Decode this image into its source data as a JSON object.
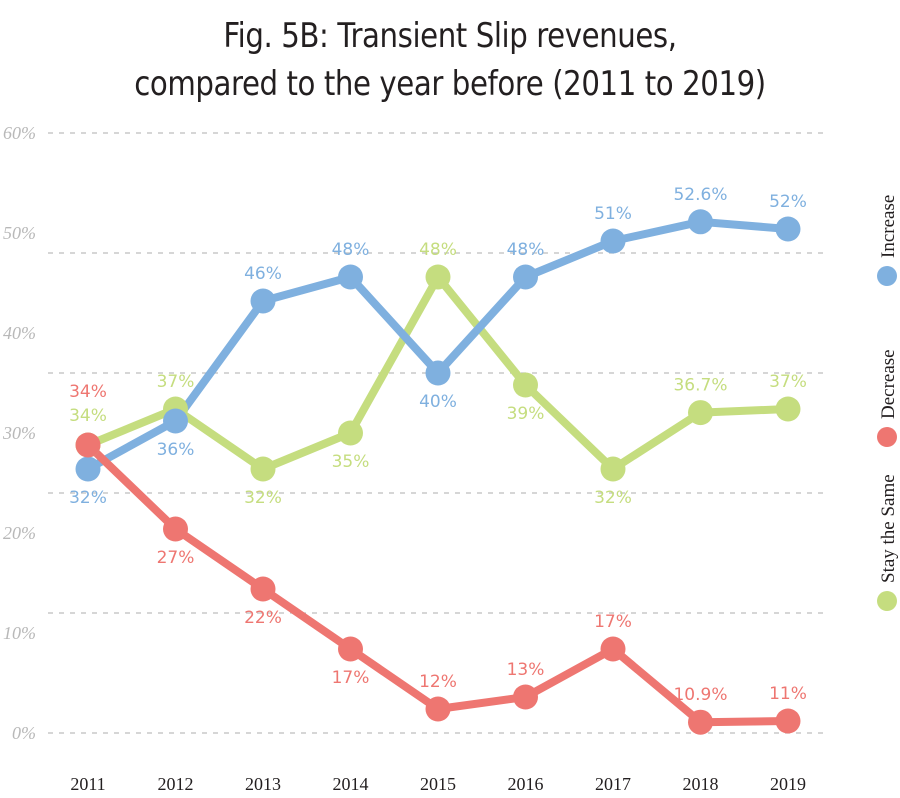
{
  "chart_data": {
    "type": "line",
    "title": "Fig. 5B: Transient Slip revenues, compared to the year before (2011 to 2019)",
    "title_lines": [
      "Fig. 5B: Transient Slip revenues,",
      "compared to the year before (2011 to 2019)"
    ],
    "x": [
      "2011",
      "2012",
      "2013",
      "2014",
      "2015",
      "2016",
      "2017",
      "2018",
      "2019"
    ],
    "xlabel": "",
    "ylabel": "",
    "ylim": [
      10,
      60
    ],
    "y_tick_labels": [
      "60%",
      "50%",
      "40%",
      "30%",
      "20%",
      "10%",
      "0%"
    ],
    "gridlines": [
      60,
      50,
      40,
      30,
      20,
      10
    ],
    "grid": true,
    "legend_placement": "right (vertical)",
    "series": [
      {
        "name": "Increase",
        "color": "#7fb0df",
        "values": [
          32,
          36,
          46,
          48,
          40,
          48,
          51,
          52.6,
          52
        ],
        "labels": [
          "32%",
          "36%",
          "46%",
          "48%",
          "40%",
          "48%",
          "51%",
          "52.6%",
          "52%"
        ],
        "label_pos": [
          "below",
          "below",
          "above",
          "above",
          "below",
          "above",
          "above",
          "above",
          "above"
        ]
      },
      {
        "name": "Decrease",
        "color": "#ee7671",
        "values": [
          34,
          27,
          22,
          17,
          12,
          13,
          17,
          10.9,
          11
        ],
        "labels": [
          "34%",
          "27%",
          "22%",
          "17%",
          "12%",
          "13%",
          "17%",
          "10.9%",
          "11%"
        ],
        "label_pos": [
          "above2",
          "below",
          "below",
          "below",
          "above",
          "above",
          "above",
          "above",
          "above"
        ]
      },
      {
        "name": "Stay the Same",
        "color": "#c5dd7f",
        "values": [
          34,
          37,
          32,
          35,
          48,
          39,
          32,
          36.7,
          37
        ],
        "labels": [
          "34%",
          "37%",
          "32%",
          "35%",
          "48%",
          "39%",
          "32%",
          "36.7%",
          "37%"
        ],
        "label_pos": [
          "above",
          "above",
          "below",
          "below",
          "above",
          "below",
          "below",
          "above",
          "above"
        ]
      }
    ],
    "legend": [
      {
        "name": "Increase",
        "color": "#7fb0df"
      },
      {
        "name": "Decrease",
        "color": "#ee7671"
      },
      {
        "name": "Stay the Same",
        "color": "#c5dd7f"
      }
    ]
  }
}
